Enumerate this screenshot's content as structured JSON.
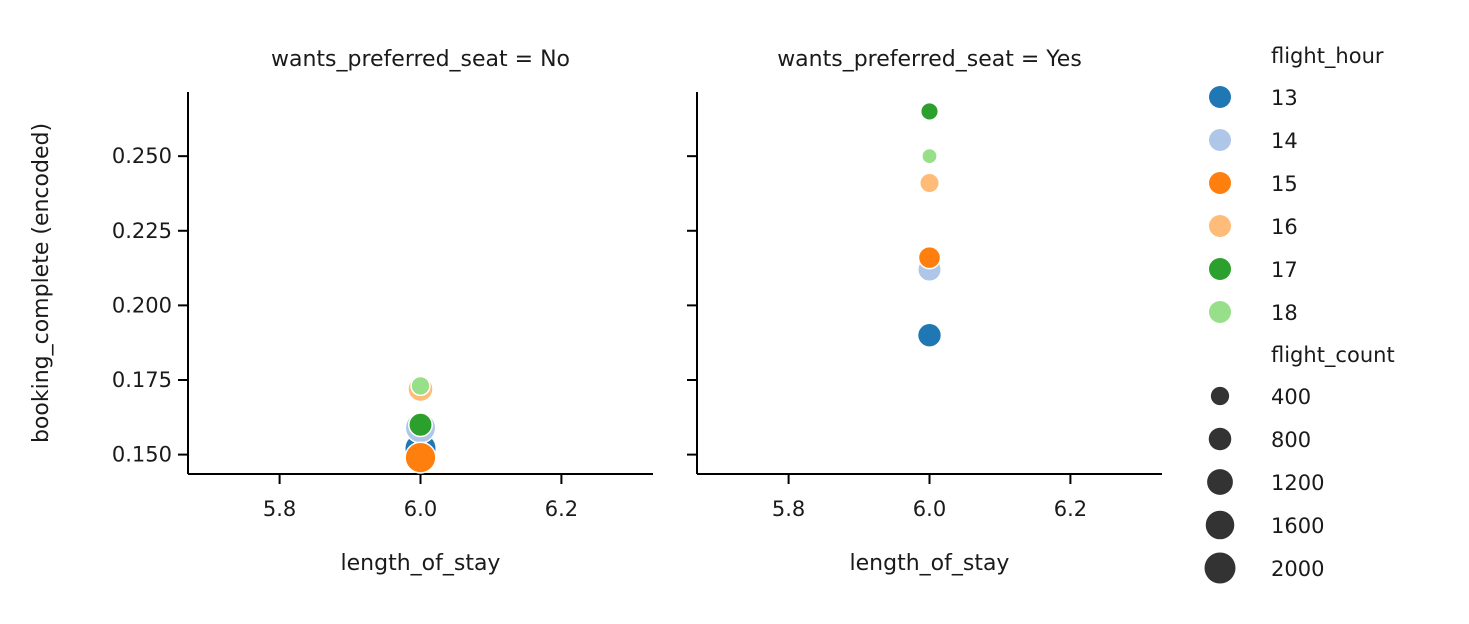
{
  "chart_data": {
    "type": "scatter",
    "ylabel": "booking_complete (encoded)",
    "xlabel": "length_of_stay",
    "xlim": [
      5.67,
      6.33
    ],
    "ylim": [
      0.1435,
      0.2715
    ],
    "xticks": [
      "5.8",
      "6.0",
      "6.2"
    ],
    "xtick_values": [
      5.8,
      6.0,
      6.2
    ],
    "yticks": [
      "0.150",
      "0.175",
      "0.200",
      "0.225",
      "0.250"
    ],
    "ytick_values": [
      0.15,
      0.175,
      0.2,
      0.225,
      0.25
    ],
    "grid": false,
    "legend_placement": "right",
    "hue": {
      "title": "flight_hour",
      "entries": [
        {
          "label": "13",
          "color": "#1f77b4"
        },
        {
          "label": "14",
          "color": "#aec7e8"
        },
        {
          "label": "15",
          "color": "#ff7f0e"
        },
        {
          "label": "16",
          "color": "#ffbb78"
        },
        {
          "label": "17",
          "color": "#2ca02c"
        },
        {
          "label": "18",
          "color": "#98df8a"
        }
      ]
    },
    "size": {
      "title": "flight_count",
      "entries": [
        {
          "label": "400",
          "value": 400
        },
        {
          "label": "800",
          "value": 800
        },
        {
          "label": "1200",
          "value": 1200
        },
        {
          "label": "1600",
          "value": 1600
        },
        {
          "label": "2000",
          "value": 2000
        }
      ]
    },
    "panels": [
      {
        "title": "wants_preferred_seat = No",
        "points": [
          {
            "hour": "13",
            "x": 6.0,
            "y": 0.152,
            "count": 2100
          },
          {
            "hour": "14",
            "x": 6.0,
            "y": 0.159,
            "count": 1900
          },
          {
            "hour": "16",
            "x": 6.0,
            "y": 0.172,
            "count": 1100
          },
          {
            "hour": "17",
            "x": 6.0,
            "y": 0.16,
            "count": 900
          },
          {
            "hour": "18",
            "x": 6.0,
            "y": 0.173,
            "count": 450
          },
          {
            "hour": "15",
            "x": 6.0,
            "y": 0.149,
            "count": 1950
          }
        ]
      },
      {
        "title": "wants_preferred_seat = Yes",
        "points": [
          {
            "hour": "13",
            "x": 6.0,
            "y": 0.19,
            "count": 950
          },
          {
            "hour": "14",
            "x": 6.0,
            "y": 0.212,
            "count": 900
          },
          {
            "hour": "15",
            "x": 6.0,
            "y": 0.216,
            "count": 750
          },
          {
            "hour": "16",
            "x": 6.0,
            "y": 0.241,
            "count": 500
          },
          {
            "hour": "17",
            "x": 6.0,
            "y": 0.265,
            "count": 350
          },
          {
            "hour": "18",
            "x": 6.0,
            "y": 0.25,
            "count": 200
          }
        ]
      }
    ]
  }
}
